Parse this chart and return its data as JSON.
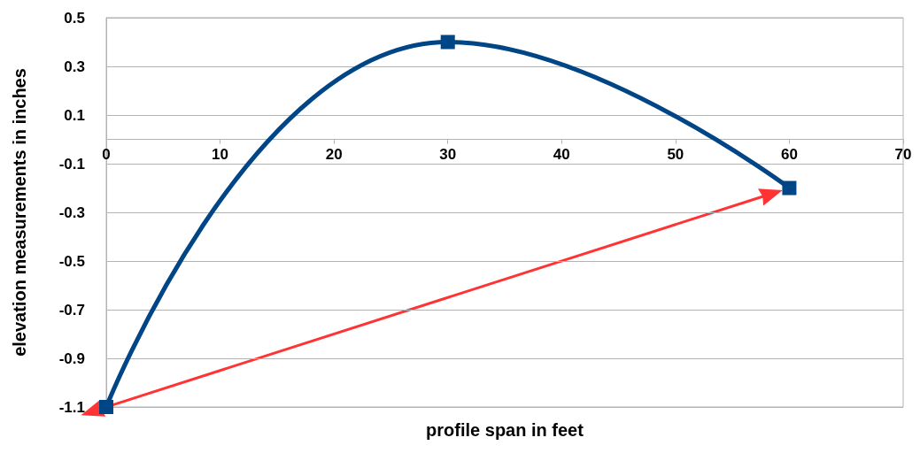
{
  "chart_data": {
    "type": "line",
    "xlabel": "profile span in feet",
    "ylabel": "elevation measurements in inches",
    "x": [
      0,
      30,
      60
    ],
    "series": [
      {
        "color": "#004586",
        "values": [
          -1.1,
          0.4,
          -0.2
        ]
      }
    ],
    "xlim": [
      0,
      70
    ],
    "xticks": [
      0,
      10,
      20,
      30,
      40,
      50,
      60,
      70
    ],
    "ylim": [
      -1.1,
      0.5
    ],
    "yticks": [
      -1.1,
      -0.9,
      -0.7,
      -0.5,
      -0.3,
      -0.1,
      0.1,
      0.3,
      0.5
    ],
    "grid": "y",
    "marker": "square",
    "line_style": "solid"
  }
}
